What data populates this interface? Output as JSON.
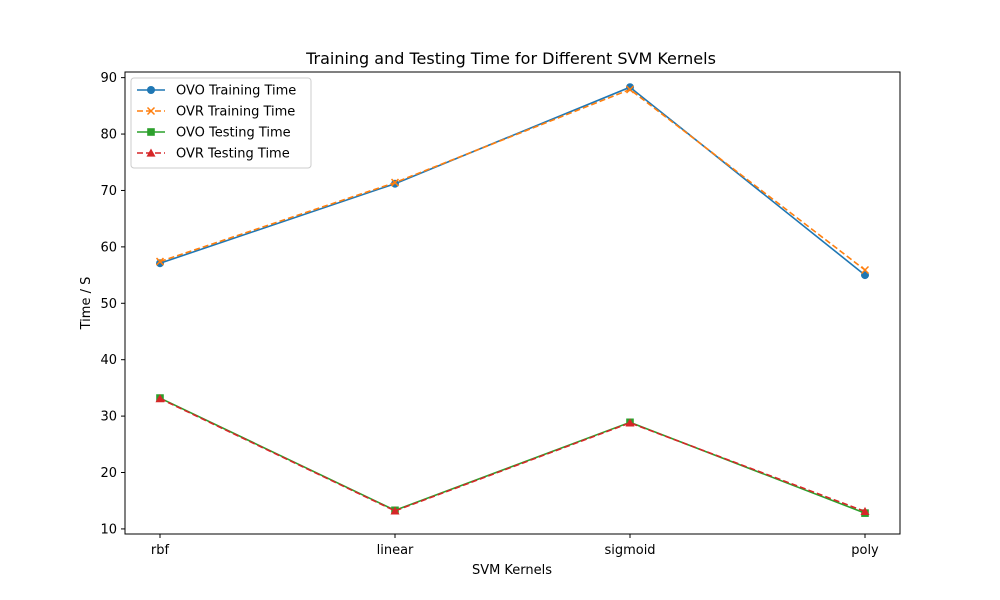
{
  "chart_data": {
    "type": "line",
    "title": "Training and Testing Time for Different SVM Kernels",
    "xlabel": "SVM Kernels",
    "ylabel": "Time / S",
    "categories": [
      "rbf",
      "linear",
      "sigmoid",
      "poly"
    ],
    "ylim": [
      9.1,
      91.0
    ],
    "yticks": [
      10,
      20,
      30,
      40,
      50,
      60,
      70,
      80,
      90
    ],
    "grid": false,
    "legend_position": "top-left",
    "series": [
      {
        "name": "OVO Training Time",
        "values": [
          57.1,
          71.2,
          88.3,
          55.0
        ],
        "color": "#1f77b4",
        "linestyle": "solid",
        "marker": "circle"
      },
      {
        "name": "OVR Training Time",
        "values": [
          57.4,
          71.4,
          87.9,
          55.9
        ],
        "color": "#ff7f0e",
        "linestyle": "dashed",
        "marker": "x"
      },
      {
        "name": "OVO Testing Time",
        "values": [
          33.2,
          13.3,
          28.9,
          12.8
        ],
        "color": "#2ca02c",
        "linestyle": "solid",
        "marker": "square"
      },
      {
        "name": "OVR Testing Time",
        "values": [
          33.1,
          13.2,
          28.8,
          13.1
        ],
        "color": "#d62728",
        "linestyle": "dashed",
        "marker": "triangle"
      }
    ]
  }
}
